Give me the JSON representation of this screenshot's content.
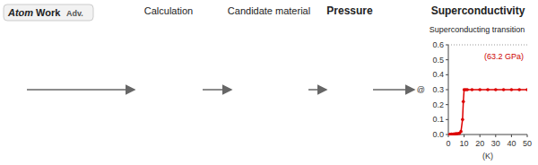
{
  "chart_data": {
    "type": "line",
    "title": "Superconducting transition",
    "x_label": "(K)",
    "y_label": "@",
    "xlim": [
      0,
      50
    ],
    "ylim": [
      0,
      0.6
    ],
    "xticks": [
      0,
      10,
      20,
      30,
      40,
      50
    ],
    "yticks": [
      {
        "value": 0.0,
        "label": "0.0"
      },
      0.1,
      0.2,
      0.3,
      0.4,
      0.5,
      0.6
    ],
    "grid": false,
    "series": [
      {
        "type": "line",
        "color": "#dd0000",
        "x": [
          0,
          2,
          4,
          6,
          7,
          8,
          9,
          9.5,
          10,
          10.5,
          11,
          12,
          15,
          20,
          30,
          40,
          50
        ],
        "values": [
          0.0,
          0.002,
          0.004,
          0.006,
          0.008,
          0.02,
          0.1,
          0.22,
          0.3,
          0.3,
          0.3,
          0.3,
          0.3,
          0.3,
          0.3,
          0.3,
          0.3
        ]
      },
      {
        "type": "scatter",
        "color": "#dd0000",
        "x": [
          1,
          2,
          3,
          4,
          5,
          6,
          7,
          8,
          9,
          9.5,
          10,
          11,
          12,
          15,
          20,
          25,
          30,
          35,
          40,
          45,
          50
        ],
        "values": [
          0.001,
          0.002,
          0.003,
          0.004,
          0.005,
          0.006,
          0.008,
          0.02,
          0.1,
          0.22,
          0.3,
          0.3,
          0.3,
          0.3,
          0.3,
          0.3,
          0.3,
          0.3,
          0.3,
          0.3,
          0.3
        ]
      }
    ],
    "annotations": [
      {
        "text": "Atom"
      },
      {
        "text": "Work"
      },
      {
        "text": "Adv."
      },
      {
        "text": "Calculation"
      },
      {
        "text": "Candidate material"
      },
      {
        "text": "Pressure"
      },
      {
        "text": "Superconductivity"
      },
      {
        "text": "(63.2 GPa)",
        "color": "#cc0000"
      }
    ]
  }
}
